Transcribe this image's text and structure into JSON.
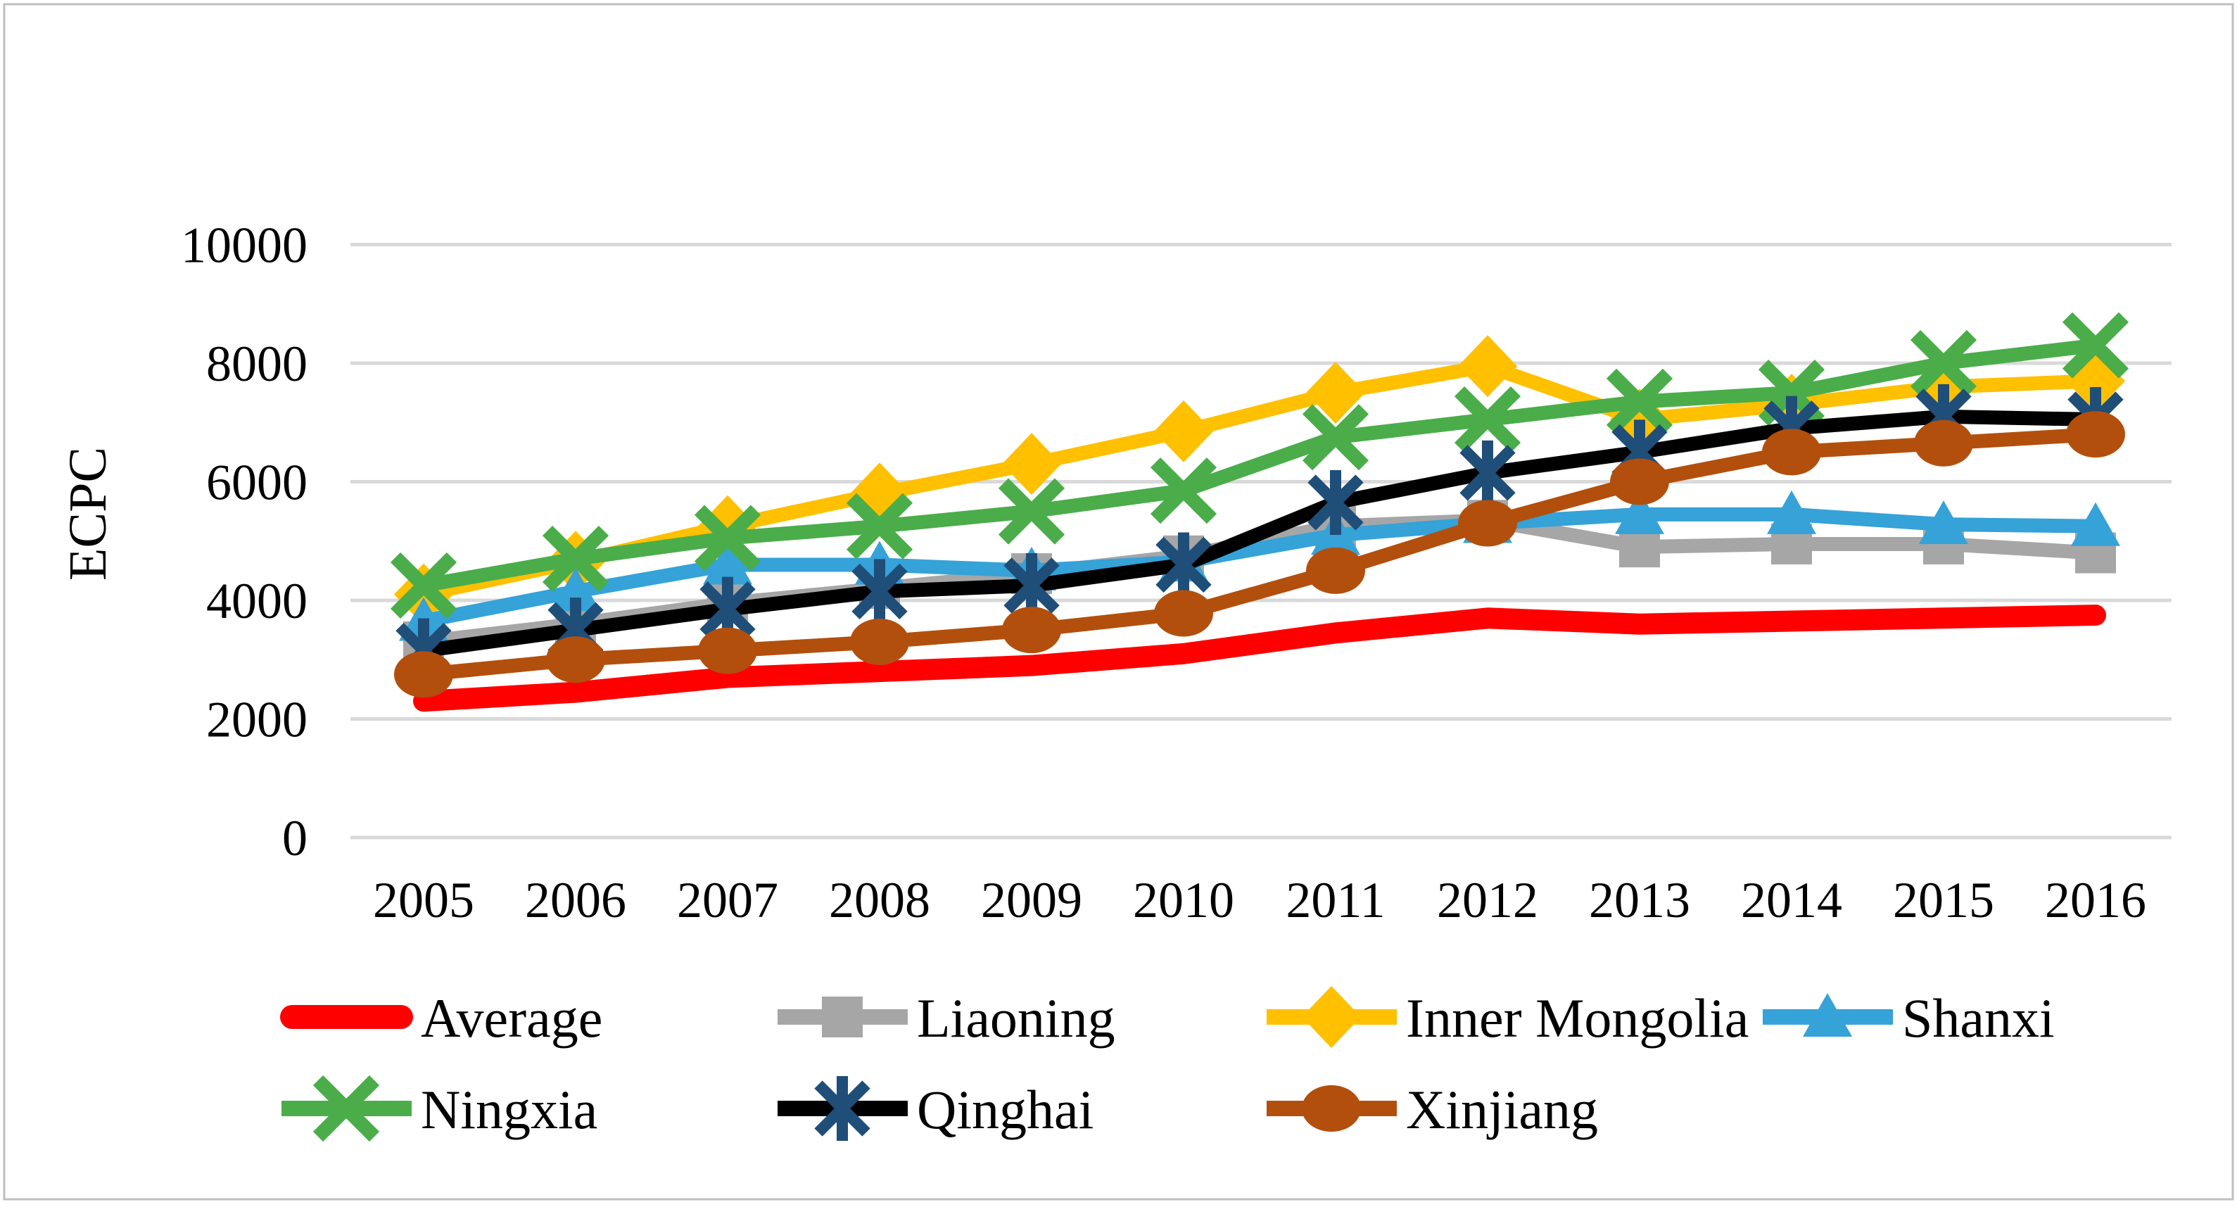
{
  "figure": {
    "background_color": "#FFFFFF",
    "border_color": "#BFBFBF",
    "title": ""
  },
  "chart_data": {
    "type": "line",
    "title": "",
    "xlabel": "",
    "ylabel": "ECPC",
    "categories": [
      "2005",
      "2006",
      "2007",
      "2008",
      "2009",
      "2010",
      "2011",
      "2012",
      "2013",
      "2014",
      "2015",
      "2016"
    ],
    "ylim": [
      0,
      10000
    ],
    "y_ticks": [
      0,
      2000,
      4000,
      6000,
      8000,
      10000
    ],
    "grid": true,
    "gridline_color": "#D9D9D9",
    "axis_text_color": "#000000",
    "legend_position": "bottom",
    "legend_rows": [
      4,
      3
    ],
    "series": [
      {
        "name": "Average",
        "color": "#FF0000",
        "marker": "none",
        "marker_color": "#FF0000",
        "line_width": 30,
        "values": [
          2300,
          2450,
          2700,
          2800,
          2900,
          3100,
          3450,
          3700,
          3600,
          3650,
          3700,
          3750
        ]
      },
      {
        "name": "Liaoning",
        "color": "#A6A6A6",
        "marker": "square",
        "marker_color": "#A6A6A6",
        "line_width": 20,
        "values": [
          3300,
          3600,
          3950,
          4200,
          4450,
          4750,
          5250,
          5350,
          4900,
          4950,
          4950,
          4800
        ]
      },
      {
        "name": "Inner Mongolia",
        "color": "#FFC000",
        "marker": "diamond",
        "marker_color": "#FFC000",
        "line_width": 20,
        "values": [
          4100,
          4650,
          5250,
          5800,
          6300,
          6850,
          7500,
          7950,
          7050,
          7300,
          7600,
          7700
        ]
      },
      {
        "name": "Shanxi",
        "color": "#35A2D8",
        "marker": "triangle",
        "marker_color": "#35A2D8",
        "line_width": 20,
        "values": [
          3650,
          4150,
          4600,
          4600,
          4500,
          4650,
          5100,
          5300,
          5450,
          5450,
          5280,
          5250
        ]
      },
      {
        "name": "Ningxia",
        "color": "#4AAD4A",
        "marker": "x",
        "marker_color": "#4AAD4A",
        "line_width": 20,
        "values": [
          4250,
          4700,
          5050,
          5250,
          5500,
          5850,
          6750,
          7050,
          7350,
          7500,
          8000,
          8300
        ]
      },
      {
        "name": "Qinghai",
        "color": "#000000",
        "marker": "asterisk",
        "marker_color": "#1F4E79",
        "line_width": 20,
        "values": [
          3150,
          3500,
          3850,
          4150,
          4250,
          4600,
          5650,
          6150,
          6500,
          6900,
          7100,
          7050
        ]
      },
      {
        "name": "Xinjiang",
        "color": "#B24F0D",
        "marker": "circle",
        "marker_color": "#B24F0D",
        "line_width": 20,
        "values": [
          2750,
          3000,
          3150,
          3300,
          3500,
          3780,
          4500,
          5300,
          6000,
          6500,
          6650,
          6800
        ]
      }
    ]
  }
}
